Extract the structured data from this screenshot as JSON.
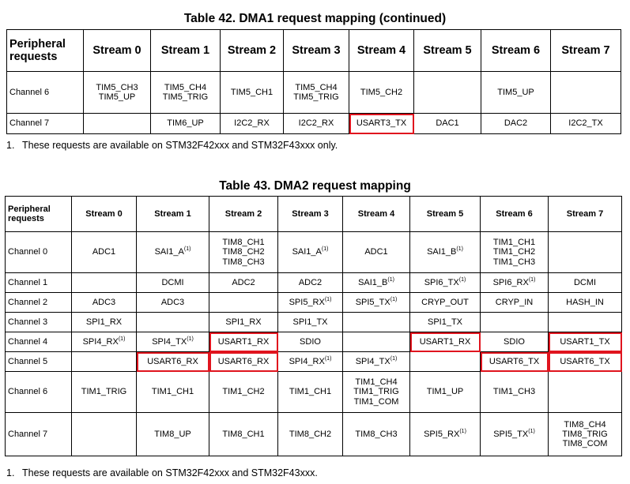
{
  "table42": {
    "title": "Table 42. DMA1 request mapping (continued)",
    "headers": [
      "Peripheral requests",
      "Stream 0",
      "Stream 1",
      "Stream 2",
      "Stream 3",
      "Stream 4",
      "Stream 5",
      "Stream 6",
      "Stream 7"
    ],
    "rows": [
      {
        "label": "Channel 6",
        "cells": [
          {
            "lines": [
              "TIM5_CH3",
              "TIM5_UP"
            ]
          },
          {
            "lines": [
              "TIM5_CH4",
              "TIM5_TRIG"
            ]
          },
          {
            "lines": [
              "TIM5_CH1"
            ]
          },
          {
            "lines": [
              "TIM5_CH4",
              "TIM5_TRIG"
            ]
          },
          {
            "lines": [
              "TIM5_CH2"
            ]
          },
          {
            "lines": []
          },
          {
            "lines": [
              "TIM5_UP"
            ]
          },
          {
            "lines": []
          }
        ]
      },
      {
        "label": "Channel 7",
        "cells": [
          {
            "lines": []
          },
          {
            "lines": [
              "TIM6_UP"
            ]
          },
          {
            "lines": [
              "I2C2_RX"
            ]
          },
          {
            "lines": [
              "I2C2_RX"
            ]
          },
          {
            "lines": [
              "USART3_TX"
            ],
            "highlight": true
          },
          {
            "lines": [
              "DAC1"
            ]
          },
          {
            "lines": [
              "DAC2"
            ]
          },
          {
            "lines": [
              "I2C2_TX"
            ]
          }
        ]
      }
    ],
    "note_number": "1.",
    "note": "These requests are available on STM32F42xxx and STM32F43xxx only."
  },
  "table43": {
    "title": "Table 43. DMA2 request mapping",
    "headers": [
      "Peripheral requests",
      "Stream 0",
      "Stream 1",
      "Stream 2",
      "Stream 3",
      "Stream 4",
      "Stream 5",
      "Stream 6",
      "Stream 7"
    ],
    "rows": [
      {
        "label": "Channel 0",
        "cells": [
          {
            "lines": [
              "ADC1"
            ]
          },
          {
            "lines": [
              "SAI1_A"
            ],
            "sup": "(1)"
          },
          {
            "lines": [
              "TIM8_CH1",
              "TIM8_CH2",
              "TIM8_CH3"
            ]
          },
          {
            "lines": [
              "SAI1_A"
            ],
            "sup": "(1)"
          },
          {
            "lines": [
              "ADC1"
            ]
          },
          {
            "lines": [
              "SAI1_B"
            ],
            "sup": "(1)"
          },
          {
            "lines": [
              "TIM1_CH1",
              "TIM1_CH2",
              "TIM1_CH3"
            ]
          },
          {
            "lines": []
          }
        ]
      },
      {
        "label": "Channel 1",
        "cells": [
          {
            "lines": []
          },
          {
            "lines": [
              "DCMI"
            ]
          },
          {
            "lines": [
              "ADC2"
            ]
          },
          {
            "lines": [
              "ADC2"
            ]
          },
          {
            "lines": [
              "SAI1_B"
            ],
            "sup": "(1)"
          },
          {
            "lines": [
              "SPI6_TX"
            ],
            "sup": "(1)"
          },
          {
            "lines": [
              "SPI6_RX"
            ],
            "sup": "(1)"
          },
          {
            "lines": [
              "DCMI"
            ]
          }
        ]
      },
      {
        "label": "Channel 2",
        "cells": [
          {
            "lines": [
              "ADC3"
            ]
          },
          {
            "lines": [
              "ADC3"
            ]
          },
          {
            "lines": []
          },
          {
            "lines": [
              "SPI5_RX"
            ],
            "sup": "(1)"
          },
          {
            "lines": [
              "SPI5_TX"
            ],
            "sup": "(1)"
          },
          {
            "lines": [
              "CRYP_OUT"
            ]
          },
          {
            "lines": [
              "CRYP_IN"
            ]
          },
          {
            "lines": [
              "HASH_IN"
            ]
          }
        ]
      },
      {
        "label": "Channel 3",
        "cells": [
          {
            "lines": [
              "SPI1_RX"
            ]
          },
          {
            "lines": []
          },
          {
            "lines": [
              "SPI1_RX"
            ]
          },
          {
            "lines": [
              "SPI1_TX"
            ]
          },
          {
            "lines": []
          },
          {
            "lines": [
              "SPI1_TX"
            ]
          },
          {
            "lines": []
          },
          {
            "lines": []
          }
        ]
      },
      {
        "label": "Channel 4",
        "cells": [
          {
            "lines": [
              "SPI4_RX"
            ],
            "sup": "(1)"
          },
          {
            "lines": [
              "SPI4_TX"
            ],
            "sup": "(1)"
          },
          {
            "lines": [
              "USART1_RX"
            ],
            "highlight": true
          },
          {
            "lines": [
              "SDIO"
            ]
          },
          {
            "lines": []
          },
          {
            "lines": [
              "USART1_RX"
            ],
            "highlight": true
          },
          {
            "lines": [
              "SDIO"
            ]
          },
          {
            "lines": [
              "USART1_TX"
            ],
            "highlight": true
          }
        ]
      },
      {
        "label": "Channel 5",
        "cells": [
          {
            "lines": []
          },
          {
            "lines": [
              "USART6_RX"
            ],
            "highlight": true
          },
          {
            "lines": [
              "USART6_RX"
            ],
            "highlight": true
          },
          {
            "lines": [
              "SPI4_RX"
            ],
            "sup": "(1)"
          },
          {
            "lines": [
              "SPI4_TX"
            ],
            "sup": "(1)"
          },
          {
            "lines": []
          },
          {
            "lines": [
              "USART6_TX"
            ],
            "highlight": true
          },
          {
            "lines": [
              "USART6_TX"
            ],
            "highlight": true
          }
        ]
      },
      {
        "label": "Channel 6",
        "cells": [
          {
            "lines": [
              "TIM1_TRIG"
            ]
          },
          {
            "lines": [
              "TIM1_CH1"
            ]
          },
          {
            "lines": [
              "TIM1_CH2"
            ]
          },
          {
            "lines": [
              "TIM1_CH1"
            ]
          },
          {
            "lines": [
              "TIM1_CH4",
              "TIM1_TRIG",
              "TIM1_COM"
            ]
          },
          {
            "lines": [
              "TIM1_UP"
            ]
          },
          {
            "lines": [
              "TIM1_CH3"
            ]
          },
          {
            "lines": []
          }
        ]
      },
      {
        "label": "Channel 7",
        "cells": [
          {
            "lines": []
          },
          {
            "lines": [
              "TIM8_UP"
            ]
          },
          {
            "lines": [
              "TIM8_CH1"
            ]
          },
          {
            "lines": [
              "TIM8_CH2"
            ]
          },
          {
            "lines": [
              "TIM8_CH3"
            ]
          },
          {
            "lines": [
              "SPI5_RX"
            ],
            "sup": "(1)"
          },
          {
            "lines": [
              "SPI5_TX"
            ],
            "sup": "(1)"
          },
          {
            "lines": [
              "TIM8_CH4",
              "TIM8_TRIG",
              "TIM8_COM"
            ]
          }
        ]
      }
    ],
    "note_number": "1.",
    "note": "These requests are available on STM32F42xxx and STM32F43xxx."
  },
  "colors": {
    "highlight": "#e0141e"
  }
}
